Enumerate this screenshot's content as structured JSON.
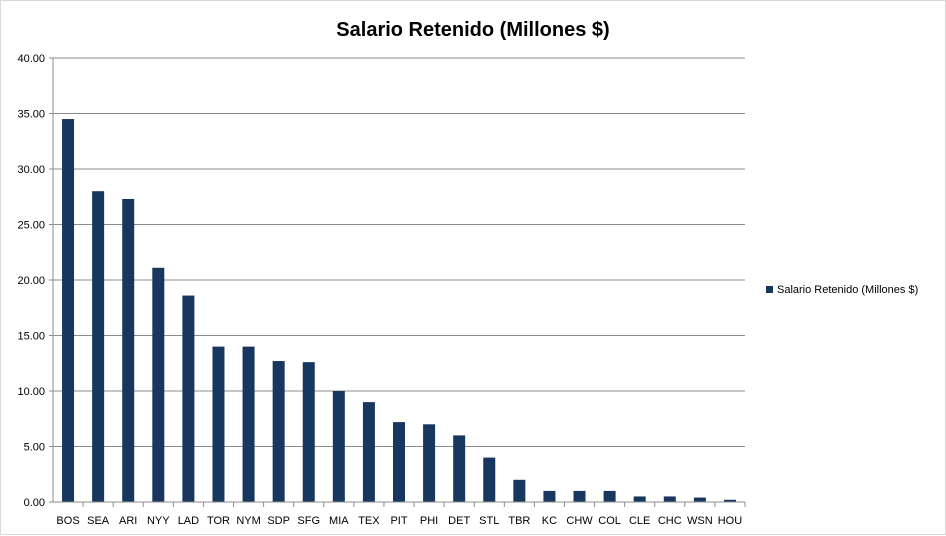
{
  "chart_data": {
    "type": "bar",
    "title": "Salario Retenido (Millones $)",
    "xlabel": "",
    "ylabel": "",
    "ylim": [
      0,
      40
    ],
    "yticks": [
      "0.00",
      "5.00",
      "10.00",
      "15.00",
      "20.00",
      "25.00",
      "30.00",
      "35.00",
      "40.00"
    ],
    "grid": true,
    "legend_position": "right",
    "bar_color": "#17375e",
    "categories": [
      "BOS",
      "SEA",
      "ARI",
      "NYY",
      "LAD",
      "TOR",
      "NYM",
      "SDP",
      "SFG",
      "MIA",
      "TEX",
      "PIT",
      "PHI",
      "DET",
      "STL",
      "TBR",
      "KC",
      "CHW",
      "COL",
      "CLE",
      "CHC",
      "WSN",
      "HOU"
    ],
    "series": [
      {
        "name": "Salario Retenido (Millones $)",
        "values": [
          34.5,
          28.0,
          27.3,
          21.1,
          18.6,
          14.0,
          14.0,
          12.7,
          12.6,
          10.0,
          9.0,
          7.2,
          7.0,
          6.0,
          4.0,
          2.0,
          1.0,
          1.0,
          1.0,
          0.5,
          0.5,
          0.4,
          0.2
        ]
      }
    ]
  }
}
